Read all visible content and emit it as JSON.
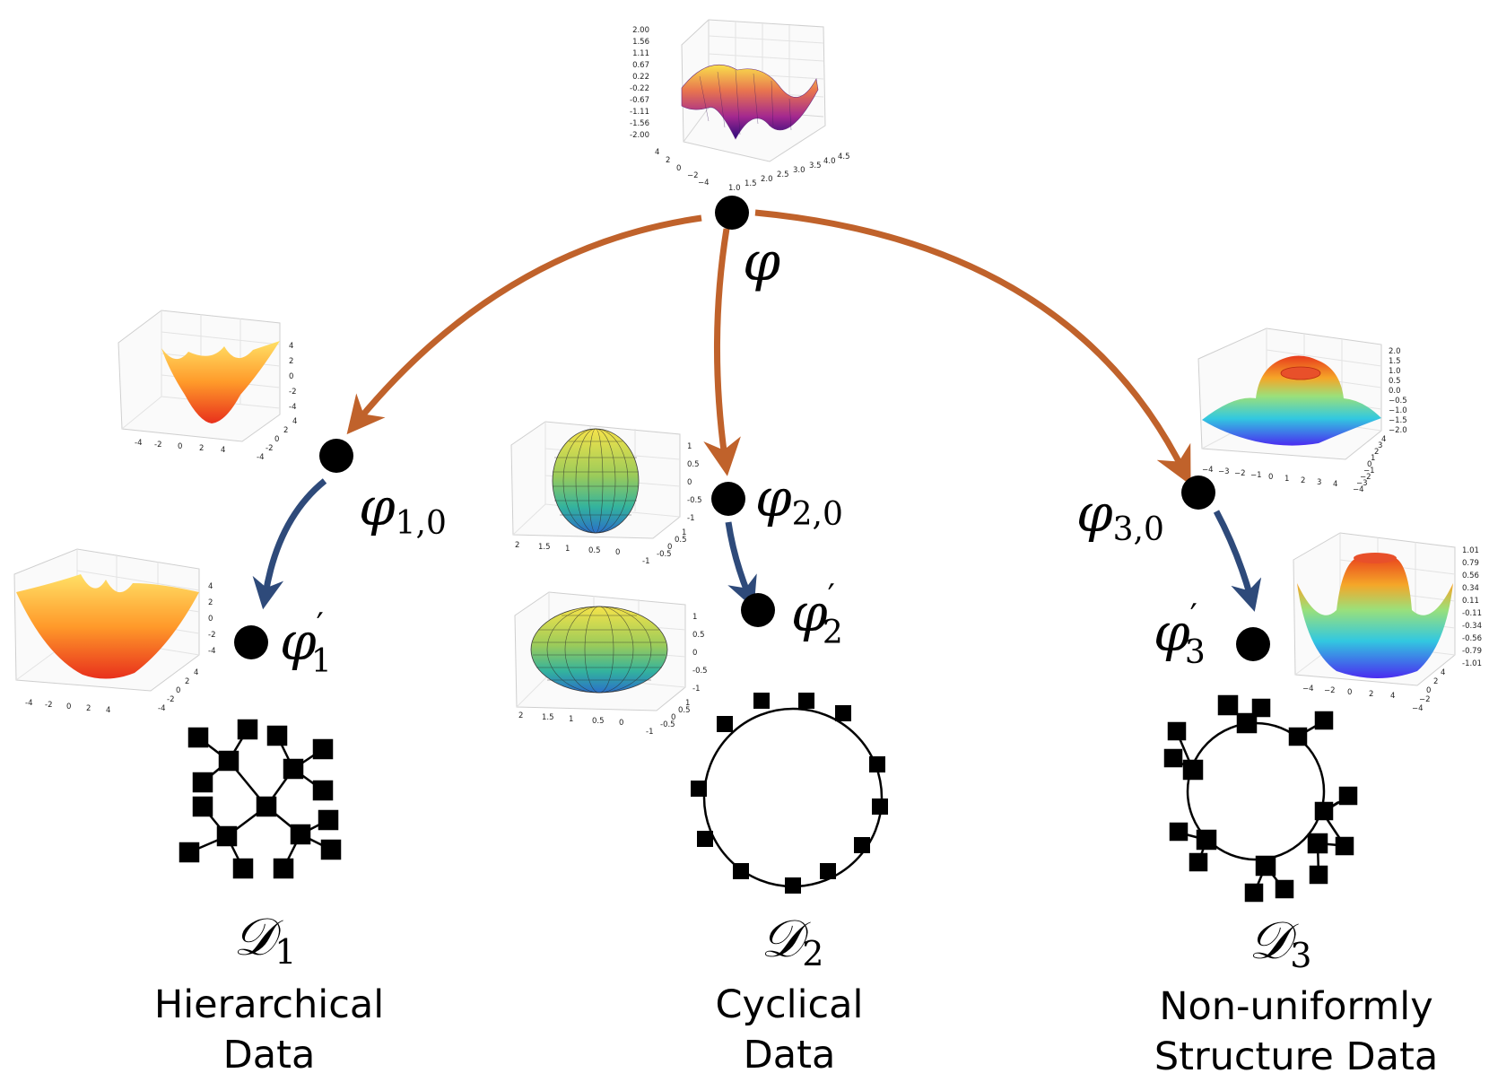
{
  "colors": {
    "arrow_primary": "#C0622B",
    "arrow_secondary": "#2E4A7A",
    "node": "#000000",
    "graph": "#000000"
  },
  "nodes": {
    "root": {
      "label": "φ"
    },
    "c1": {
      "label": "φ",
      "sub": "1,0"
    },
    "c2": {
      "label": "φ",
      "sub": "2,0"
    },
    "c3": {
      "label": "φ",
      "sub": "3,0"
    },
    "f1": {
      "label": "φ",
      "prime": "′",
      "sub": "1"
    },
    "f2": {
      "label": "φ",
      "prime": "′",
      "sub": "2"
    },
    "f3": {
      "label": "φ",
      "prime": "′",
      "sub": "3"
    }
  },
  "datasets": [
    {
      "symbol": "𝒟",
      "sub": "1",
      "line1": "Hierarchical",
      "line2": "Data"
    },
    {
      "symbol": "𝒟",
      "sub": "2",
      "line1": "Cyclical",
      "line2": "Data"
    },
    {
      "symbol": "𝒟",
      "sub": "3",
      "line1": "Non-uniformly",
      "line2": "Structure Data"
    }
  ],
  "plots": {
    "top": {
      "colormap": "plasma",
      "z_ticks": [
        "2.00",
        "1.56",
        "1.11",
        "0.67",
        "0.22",
        "-0.22",
        "-0.67",
        "-1.11",
        "-1.56",
        "-2.00"
      ],
      "y_ticks": [
        "4",
        "2",
        "0",
        "−2",
        "−4"
      ],
      "x_ticks": [
        "1.0",
        "1.5",
        "2.0",
        "2.5",
        "3.0",
        "3.5",
        "4.0",
        "4.5"
      ]
    },
    "bowl_small": {
      "colormap": "autumn",
      "z_ticks": [
        "4",
        "2",
        "0",
        "-2",
        "-4"
      ],
      "x_ticks": [
        "-4",
        "-2",
        "0",
        "2",
        "4"
      ],
      "y_ticks": [
        "4",
        "2",
        "0",
        "-2",
        "-4"
      ]
    },
    "bowl_wide": {
      "colormap": "autumn",
      "z_ticks": [
        "4",
        "2",
        "0",
        "-2",
        "-4"
      ],
      "x_ticks": [
        "-4",
        "-2",
        "0",
        "2",
        "4"
      ],
      "y_ticks": [
        "4",
        "2",
        "0",
        "-2",
        "-4"
      ]
    },
    "sphere": {
      "colormap": "viridis-yellow",
      "z_ticks": [
        "1",
        "0.5",
        "0",
        "-0.5",
        "-1"
      ],
      "x_ticks": [
        "2",
        "1.5",
        "1",
        "0.5",
        "0"
      ],
      "y_ticks": [
        "1",
        "0.5",
        "0",
        "-0.5",
        "-1"
      ]
    },
    "ellipsoid": {
      "colormap": "viridis-yellow",
      "z_ticks": [
        "1",
        "0.5",
        "0",
        "-0.5",
        "-1"
      ],
      "x_ticks": [
        "2",
        "1.5",
        "1",
        "0.5",
        "0"
      ],
      "y_ticks": [
        "1",
        "0.5",
        "0",
        "-0.5",
        "-1"
      ]
    },
    "ring": {
      "colormap": "rainbow",
      "z_ticks": [
        "2.0",
        "1.5",
        "1.0",
        "0.5",
        "0.0",
        "−0.5",
        "−1.0",
        "−1.5",
        "−2.0"
      ],
      "x_ticks": [
        "−4",
        "−3",
        "−2",
        "−1",
        "0",
        "1",
        "2",
        "3",
        "4"
      ],
      "y_ticks": [
        "4",
        "3",
        "2",
        "1",
        "0",
        "−1",
        "−2",
        "−3",
        "−4"
      ]
    },
    "crown": {
      "colormap": "rainbow",
      "z_ticks": [
        "1.01",
        "0.79",
        "0.56",
        "0.34",
        "0.11",
        "-0.11",
        "-0.34",
        "-0.56",
        "-0.79",
        "-1.01"
      ],
      "x_ticks": [
        "−4",
        "−2",
        "0",
        "2",
        "4"
      ],
      "y_ticks": [
        "4",
        "2",
        "0",
        "−2",
        "−4"
      ]
    }
  }
}
